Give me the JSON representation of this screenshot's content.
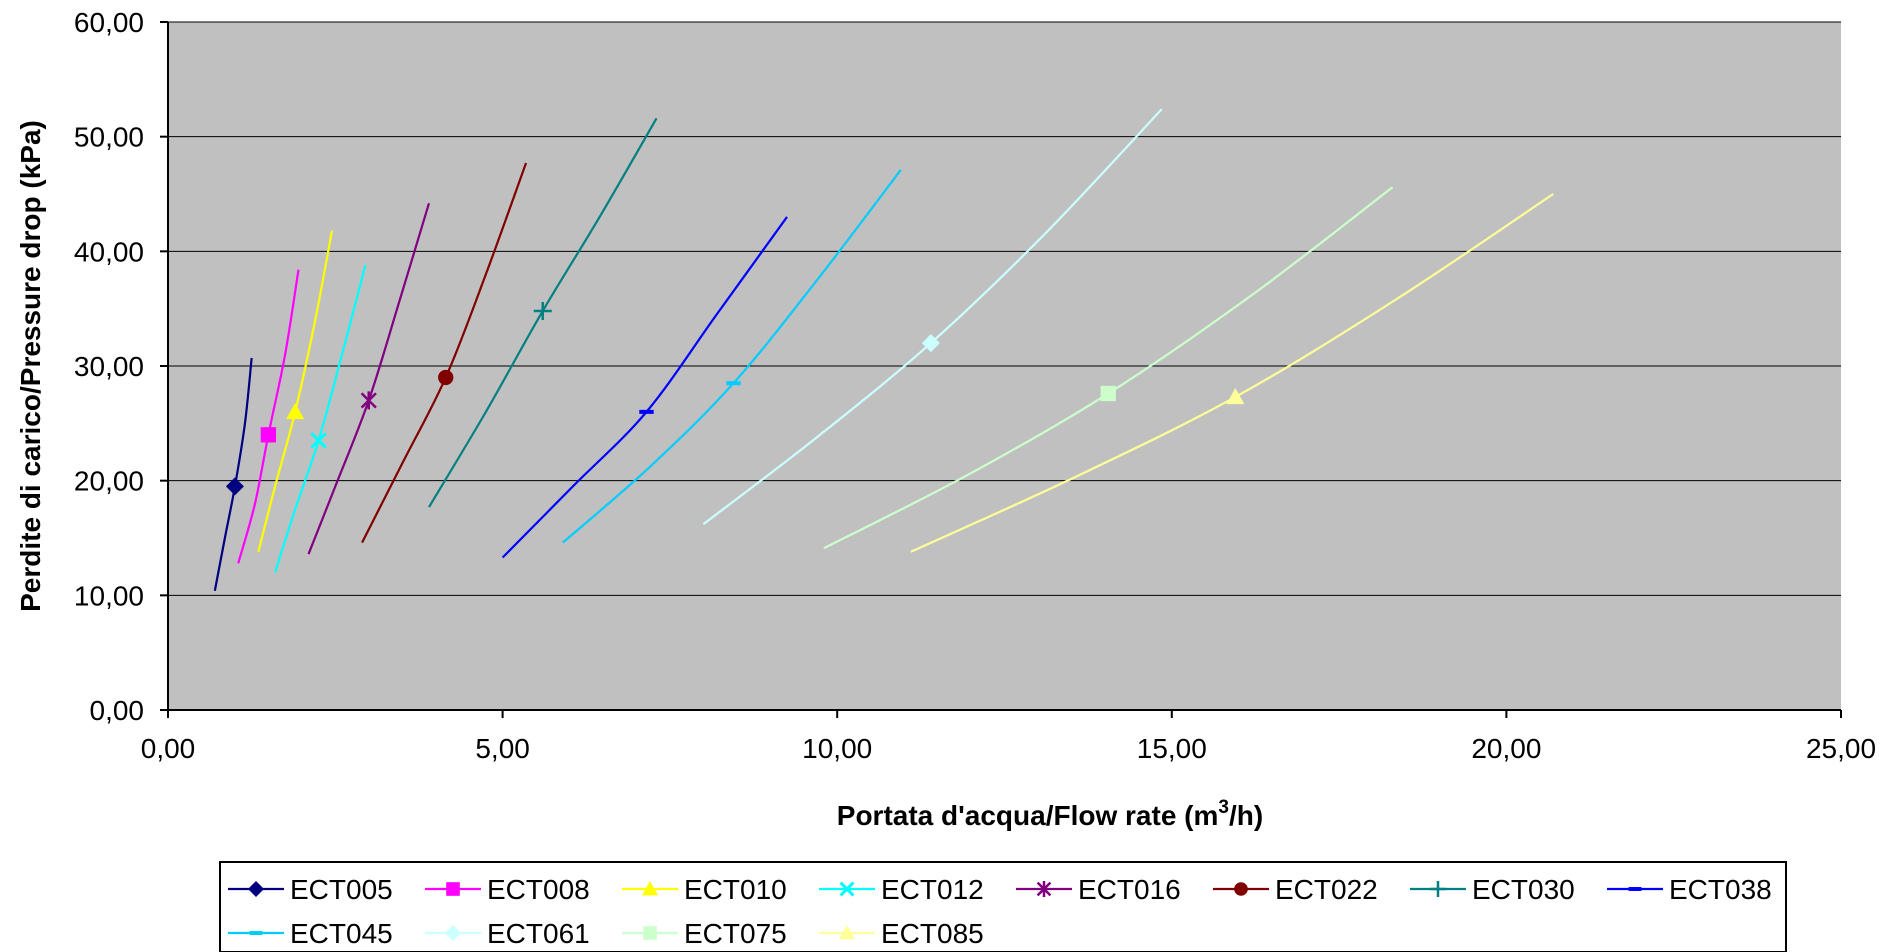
{
  "chart_data": {
    "type": "line",
    "xlabel": "Portata d'acqua/Flow rate (m",
    "xlabel_sup": "3",
    "xlabel_suffix": "/h)",
    "ylabel": "Perdite di carico/Pressure drop (kPa)",
    "xlim": [
      0,
      25
    ],
    "ylim": [
      0,
      60
    ],
    "xticks": [
      "0,00",
      "5,00",
      "10,00",
      "15,00",
      "20,00",
      "25,00"
    ],
    "yticks": [
      "0,00",
      "10,00",
      "20,00",
      "30,00",
      "40,00",
      "50,00",
      "60,00"
    ],
    "grid": "horizontal",
    "plot_background": "#C0C0C0",
    "legend_position": "bottom",
    "series": [
      {
        "name": "ECT005",
        "color": "#000080",
        "marker": "diamond",
        "points": [
          [
            0.7,
            10.4
          ],
          [
            0.85,
            15
          ],
          [
            1.0,
            19.5
          ],
          [
            1.15,
            25
          ],
          [
            1.25,
            30.7
          ]
        ],
        "marker_at": [
          1.0,
          19.5
        ]
      },
      {
        "name": "ECT008",
        "color": "#FF00FF",
        "marker": "square",
        "points": [
          [
            1.05,
            12.8
          ],
          [
            1.3,
            18
          ],
          [
            1.5,
            24
          ],
          [
            1.75,
            31
          ],
          [
            1.95,
            38.4
          ]
        ],
        "marker_at": [
          1.5,
          24
        ]
      },
      {
        "name": "ECT010",
        "color": "#FFFF00",
        "marker": "triangle",
        "points": [
          [
            1.35,
            13.8
          ],
          [
            1.6,
            19.5
          ],
          [
            1.9,
            26
          ],
          [
            2.2,
            34
          ],
          [
            2.45,
            41.8
          ]
        ],
        "marker_at": [
          1.9,
          26
        ]
      },
      {
        "name": "ECT012",
        "color": "#00FFFF",
        "marker": "x",
        "points": [
          [
            1.6,
            12
          ],
          [
            1.9,
            17.5
          ],
          [
            2.25,
            23.5
          ],
          [
            2.6,
            31
          ],
          [
            2.95,
            38.8
          ]
        ],
        "marker_at": [
          2.25,
          23.5
        ]
      },
      {
        "name": "ECT016",
        "color": "#800080",
        "marker": "asterisk",
        "points": [
          [
            2.1,
            13.6
          ],
          [
            2.5,
            19.5
          ],
          [
            3.0,
            27
          ],
          [
            3.45,
            35.5
          ],
          [
            3.9,
            44.2
          ]
        ],
        "marker_at": [
          3.0,
          27
        ]
      },
      {
        "name": "ECT022",
        "color": "#800000",
        "marker": "circle",
        "points": [
          [
            2.9,
            14.6
          ],
          [
            3.5,
            21.5
          ],
          [
            4.15,
            29
          ],
          [
            4.75,
            38
          ],
          [
            5.35,
            47.7
          ]
        ],
        "marker_at": [
          4.15,
          29
        ]
      },
      {
        "name": "ECT030",
        "color": "#008080",
        "marker": "plus",
        "points": [
          [
            3.9,
            17.7
          ],
          [
            4.75,
            26
          ],
          [
            5.6,
            34.8
          ],
          [
            6.45,
            43
          ],
          [
            7.3,
            51.6
          ]
        ],
        "marker_at": [
          5.6,
          34.8
        ]
      },
      {
        "name": "ECT038",
        "color": "#0000FF",
        "marker": "dash",
        "points": [
          [
            5.0,
            13.3
          ],
          [
            6.05,
            19.5
          ],
          [
            7.15,
            26
          ],
          [
            8.2,
            34.5
          ],
          [
            9.25,
            43
          ]
        ],
        "marker_at": [
          7.15,
          26
        ]
      },
      {
        "name": "ECT045",
        "color": "#00CCFF",
        "marker": "dash",
        "points": [
          [
            5.9,
            14.6
          ],
          [
            7.2,
            21.2
          ],
          [
            8.45,
            28.5
          ],
          [
            9.7,
            37.5
          ],
          [
            10.95,
            47.1
          ]
        ],
        "marker_at": [
          8.45,
          28.5
        ]
      },
      {
        "name": "ECT061",
        "color": "#CCFFFF",
        "marker": "diamond",
        "points": [
          [
            8.0,
            16.2
          ],
          [
            9.7,
            23.8
          ],
          [
            11.4,
            32
          ],
          [
            13.1,
            41.5
          ],
          [
            14.85,
            52.4
          ]
        ],
        "marker_at": [
          11.4,
          32
        ]
      },
      {
        "name": "ECT075",
        "color": "#CCFFCC",
        "marker": "square",
        "points": [
          [
            9.8,
            14.1
          ],
          [
            11.95,
            20.5
          ],
          [
            14.05,
            27.6
          ],
          [
            16.2,
            36.2
          ],
          [
            18.3,
            45.6
          ]
        ],
        "marker_at": [
          14.05,
          27.6
        ]
      },
      {
        "name": "ECT085",
        "color": "#FFFF99",
        "marker": "triangle",
        "points": [
          [
            11.1,
            13.8
          ],
          [
            13.55,
            20.3
          ],
          [
            15.95,
            27.3
          ],
          [
            18.35,
            35.8
          ],
          [
            20.7,
            45
          ]
        ],
        "marker_at": [
          15.95,
          27.3
        ]
      }
    ]
  }
}
